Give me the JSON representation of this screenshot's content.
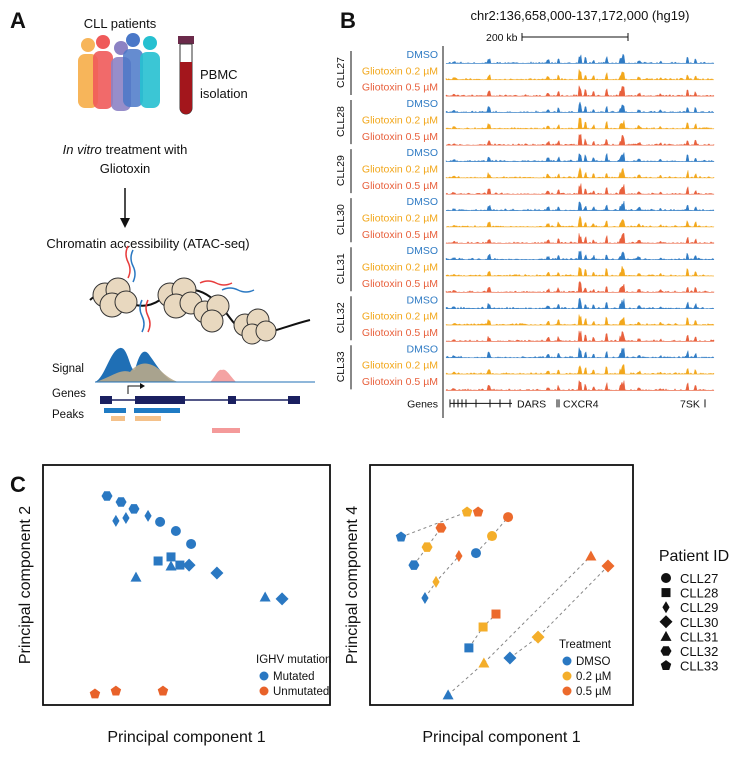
{
  "panel_a": {
    "label": "A",
    "patients_title": "CLL patients",
    "isolation": [
      "PBMC",
      "isolation"
    ],
    "treatment_italic": "In vitro",
    "treatment_rest": "treatment with",
    "treatment_line2": "Gliotoxin",
    "assay": "Chromatin accessibility (ATAC-seq)",
    "tracks": [
      "Signal",
      "Genes",
      "Peaks"
    ]
  },
  "panel_b": {
    "label": "B",
    "title": "chr2:136,658,000-137,172,000 (hg19)",
    "scale_label": "200 kb",
    "patients": [
      "CLL27",
      "CLL28",
      "CLL29",
      "CLL30",
      "CLL31",
      "CLL32",
      "CLL33"
    ],
    "conditions": [
      "DMSO",
      "Gliotoxin 0.2 µM",
      "Gliotoxin 0.5 µM"
    ],
    "condition_colors": [
      "#2f7bc4",
      "#f2a71b",
      "#e8603c"
    ],
    "genes_label": "Genes",
    "genes": [
      "DARS",
      "CXCR4",
      "7SK"
    ]
  },
  "panel_c": {
    "label": "C"
  },
  "patient_legend": {
    "title": "Patient ID",
    "items": [
      "CLL27",
      "CLL28",
      "CLL29",
      "CLL30",
      "CLL31",
      "CLL32",
      "CLL33"
    ],
    "markers": [
      "circle",
      "square",
      "thin-diamond",
      "diamond",
      "triangle",
      "hexagon",
      "pentagon"
    ]
  },
  "chart_data": [
    {
      "type": "scatter",
      "xlabel": "Principal component 1",
      "ylabel": "Principal component 2",
      "xlim": [
        0,
        100
      ],
      "ylim": [
        0,
        100
      ],
      "legend_title": "IGHV mutation",
      "legend": "lower right",
      "series": [
        {
          "name": "Mutated",
          "color": "#2a78c2",
          "x": [
            22.3,
            27.2,
            31.7,
            25.4,
            28.9,
            36.6,
            40.8,
            46.3,
            51.6,
            40.1,
            44.6,
            47.7,
            32.4,
            44.6,
            77.4,
            50.9,
            60.6,
            83.3
          ],
          "values": [
            87.1,
            84.6,
            81.7,
            76.7,
            77.9,
            78.8,
            76.3,
            72.5,
            67.1,
            60.0,
            61.7,
            58.3,
            53.3,
            57.9,
            45.0,
            58.3,
            55.0,
            44.2
          ],
          "patients": [
            "CLL32",
            "CLL32",
            "CLL32",
            "CLL29",
            "CLL29",
            "CLL29",
            "CLL27",
            "CLL27",
            "CLL27",
            "CLL28",
            "CLL28",
            "CLL28",
            "CLL31",
            "CLL31",
            "CLL31",
            "CLL30",
            "CLL30",
            "CLL30"
          ]
        },
        {
          "name": "Unmutated",
          "color": "#e8622a",
          "x": [
            18.1,
            25.4,
            41.8
          ],
          "values": [
            4.6,
            5.8,
            5.8
          ],
          "patients": [
            "CLL33",
            "CLL33",
            "CLL33"
          ]
        }
      ]
    },
    {
      "type": "scatter",
      "xlabel": "Principal component 1",
      "ylabel": "Principal component 4",
      "xlim": [
        0,
        100
      ],
      "ylim": [
        0,
        100
      ],
      "legend_title": "Treatment",
      "legend": "lower right",
      "connect_patients": true,
      "series": [
        {
          "name": "DMSO",
          "color": "#2a78c2",
          "x": [
            40.3,
            37.6,
            20.9,
            53.2,
            29.7,
            16.7,
            11.8
          ],
          "values": [
            63.3,
            23.8,
            44.6,
            19.6,
            4.2,
            58.3,
            70.0
          ],
          "patients": [
            "CLL27",
            "CLL28",
            "CLL29",
            "CLL30",
            "CLL31",
            "CLL32",
            "CLL33"
          ]
        },
        {
          "name": "0.2 µM",
          "color": "#f4ae2a",
          "x": [
            46.4,
            43.0,
            25.1,
            63.9,
            43.3,
            21.7,
            36.9
          ],
          "values": [
            70.4,
            32.5,
            51.3,
            28.3,
            17.5,
            65.8,
            80.4
          ],
          "patients": [
            "CLL27",
            "CLL28",
            "CLL29",
            "CLL30",
            "CLL31",
            "CLL32",
            "CLL33"
          ]
        },
        {
          "name": "0.5 µM",
          "color": "#ec6a2c",
          "x": [
            52.5,
            47.9,
            33.8,
            90.5,
            84.0,
            27.0,
            41.1
          ],
          "values": [
            78.3,
            37.9,
            62.1,
            57.9,
            62.1,
            73.8,
            80.4
          ],
          "patients": [
            "CLL27",
            "CLL28",
            "CLL29",
            "CLL30",
            "CLL31",
            "CLL32",
            "CLL33"
          ]
        }
      ]
    }
  ]
}
